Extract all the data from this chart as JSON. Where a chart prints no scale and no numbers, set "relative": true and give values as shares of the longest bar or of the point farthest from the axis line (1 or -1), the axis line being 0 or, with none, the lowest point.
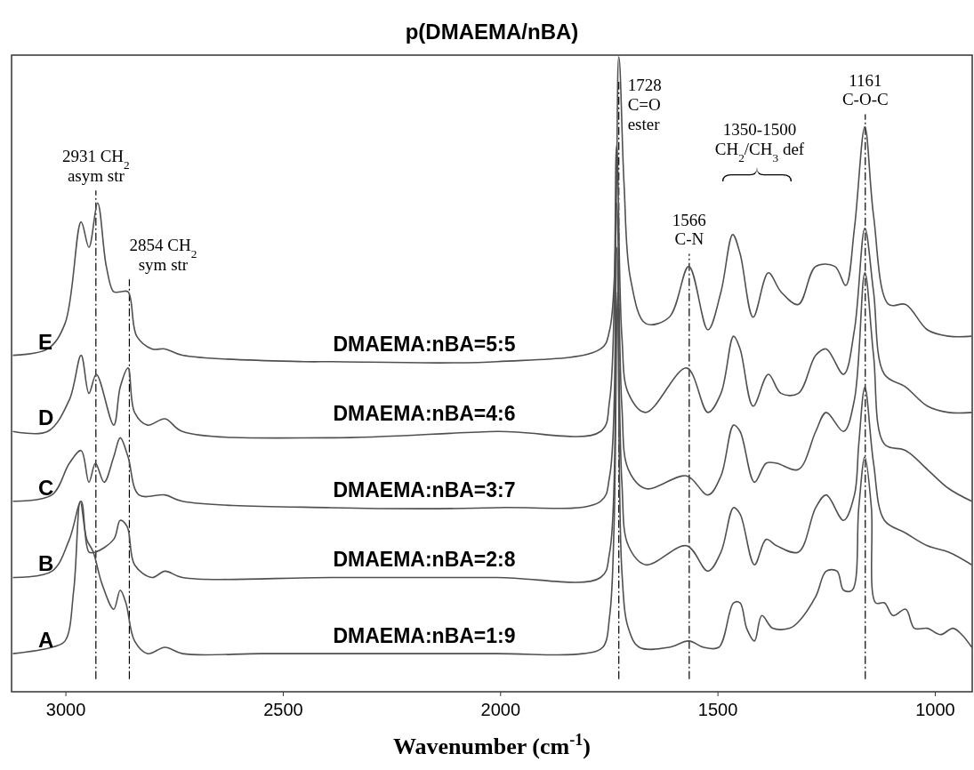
{
  "chart_data": {
    "type": "line",
    "relative": true,
    "title": "p(DMAEMA/nBA)",
    "xlabel": "Wavenumber (cm$^{-1}$)",
    "xlim": [
      3125,
      915
    ],
    "xticks": [
      3000,
      2500,
      2000,
      1500,
      1000
    ],
    "grid": false,
    "legend": false,
    "marker": "none",
    "line_style": "solid",
    "series": [
      {
        "name": "E",
        "color": "#505050",
        "x": [
          3122,
          3042,
          3002,
          2965,
          2947,
          2927,
          2907,
          2890,
          2875,
          2857,
          2837,
          2802,
          2772,
          2732,
          2452,
          2389,
          2008,
          1770,
          1749,
          1728,
          1716,
          1701,
          1666,
          1612,
          1567,
          1523,
          1493,
          1466,
          1449,
          1419,
          1384,
          1355,
          1315,
          1275,
          1231,
          1206,
          1186,
          1162,
          1142,
          1107,
          1068,
          1018,
          969,
          916
        ],
        "values": [
          0.53,
          0.54,
          0.58,
          0.74,
          0.7,
          0.77,
          0.67,
          0.63,
          0.63,
          0.63,
          0.56,
          0.54,
          0.54,
          0.53,
          0.52,
          0.52,
          0.52,
          0.54,
          0.57,
          1.0,
          0.8,
          0.65,
          0.58,
          0.59,
          0.67,
          0.57,
          0.63,
          0.72,
          0.69,
          0.59,
          0.66,
          0.63,
          0.61,
          0.67,
          0.67,
          0.64,
          0.73,
          0.89,
          0.75,
          0.61,
          0.61,
          0.57,
          0.56,
          0.56
        ]
      },
      {
        "name": "D",
        "color": "#505050",
        "x": [
          3122,
          3042,
          2992,
          2965,
          2947,
          2930,
          2890,
          2875,
          2857,
          2842,
          2812,
          2772,
          2732,
          2389,
          2008,
          1770,
          1749,
          1733,
          1721,
          1706,
          1666,
          1572,
          1523,
          1493,
          1464,
          1449,
          1419,
          1384,
          1355,
          1315,
          1275,
          1251,
          1211,
          1186,
          1162,
          1142,
          1117,
          1068,
          1018,
          969,
          916
        ],
        "values": [
          0.41,
          0.41,
          0.46,
          0.53,
          0.47,
          0.5,
          0.42,
          0.48,
          0.51,
          0.44,
          0.42,
          0.43,
          0.41,
          0.4,
          0.41,
          0.41,
          0.46,
          0.86,
          0.56,
          0.47,
          0.44,
          0.51,
          0.44,
          0.47,
          0.56,
          0.54,
          0.45,
          0.5,
          0.47,
          0.47,
          0.53,
          0.54,
          0.5,
          0.57,
          0.73,
          0.63,
          0.5,
          0.48,
          0.45,
          0.44,
          0.44
        ]
      },
      {
        "name": "C",
        "color": "#505050",
        "x": [
          3122,
          3032,
          2992,
          2965,
          2947,
          2932,
          2912,
          2890,
          2875,
          2857,
          2832,
          2772,
          2732,
          2389,
          2008,
          1770,
          1749,
          1733,
          1721,
          1706,
          1666,
          1572,
          1523,
          1493,
          1464,
          1449,
          1416,
          1389,
          1365,
          1315,
          1275,
          1251,
          1211,
          1186,
          1162,
          1142,
          1117,
          1068,
          1018,
          969,
          916
        ],
        "values": [
          0.3,
          0.31,
          0.36,
          0.38,
          0.33,
          0.36,
          0.33,
          0.37,
          0.4,
          0.37,
          0.31,
          0.31,
          0.3,
          0.29,
          0.29,
          0.3,
          0.34,
          0.77,
          0.45,
          0.35,
          0.32,
          0.34,
          0.31,
          0.34,
          0.42,
          0.41,
          0.33,
          0.36,
          0.36,
          0.35,
          0.41,
          0.44,
          0.41,
          0.46,
          0.66,
          0.53,
          0.39,
          0.38,
          0.35,
          0.32,
          0.3
        ]
      },
      {
        "name": "B",
        "color": "#505050",
        "x": [
          3122,
          3032,
          2992,
          2965,
          2947,
          2932,
          2890,
          2875,
          2859,
          2842,
          2802,
          2772,
          2732,
          2389,
          2008,
          1770,
          1749,
          1733,
          1721,
          1706,
          1666,
          1572,
          1523,
          1493,
          1464,
          1449,
          1416,
          1389,
          1365,
          1315,
          1275,
          1251,
          1211,
          1186,
          1176,
          1162,
          1142,
          1117,
          1068,
          1018,
          969,
          916
        ],
        "values": [
          0.18,
          0.19,
          0.24,
          0.3,
          0.22,
          0.22,
          0.24,
          0.27,
          0.26,
          0.2,
          0.18,
          0.19,
          0.18,
          0.18,
          0.18,
          0.18,
          0.22,
          0.7,
          0.33,
          0.23,
          0.2,
          0.23,
          0.19,
          0.22,
          0.29,
          0.28,
          0.2,
          0.24,
          0.23,
          0.22,
          0.29,
          0.31,
          0.27,
          0.31,
          0.39,
          0.48,
          0.36,
          0.27,
          0.25,
          0.23,
          0.22,
          0.2
        ]
      },
      {
        "name": "A",
        "color": "#505050",
        "x": [
          3122,
          3032,
          3002,
          2982,
          2967,
          2952,
          2937,
          2917,
          2890,
          2875,
          2862,
          2842,
          2812,
          2772,
          2732,
          2552,
          2389,
          2008,
          1810,
          1765,
          1749,
          1739,
          1731,
          1721,
          1706,
          1681,
          1612,
          1567,
          1533,
          1498,
          1464,
          1449,
          1434,
          1416,
          1399,
          1374,
          1335,
          1315,
          1275,
          1251,
          1226,
          1211,
          1191,
          1176,
          1162,
          1147,
          1137,
          1117,
          1097,
          1068,
          1048,
          1018,
          988,
          959,
          939,
          916
        ],
        "values": [
          0.06,
          0.07,
          0.08,
          0.16,
          0.3,
          0.24,
          0.22,
          0.17,
          0.13,
          0.16,
          0.14,
          0.08,
          0.06,
          0.07,
          0.06,
          0.06,
          0.06,
          0.06,
          0.06,
          0.07,
          0.12,
          0.26,
          0.63,
          0.19,
          0.1,
          0.07,
          0.07,
          0.08,
          0.07,
          0.07,
          0.14,
          0.14,
          0.1,
          0.08,
          0.12,
          0.1,
          0.1,
          0.11,
          0.15,
          0.19,
          0.19,
          0.16,
          0.16,
          0.29,
          0.37,
          0.29,
          0.14,
          0.14,
          0.12,
          0.13,
          0.1,
          0.1,
          0.09,
          0.1,
          0.09,
          0.07
        ]
      }
    ],
    "annotations": [
      "DMAEMA:nBA=5:5",
      "DMAEMA:nBA=4:6",
      "DMAEMA:nBA=3:7",
      "DMAEMA:nBA=2:8",
      "DMAEMA:nBA=1:9",
      "1350-1500\nCH$_{2}$/CH$_{3}$ def"
    ],
    "ref_lines": [
      {
        "axis": "x",
        "value": 2931,
        "label": "2931 CH$_{2}$\nasym str",
        "line_style": "dashed",
        "color": "#000000"
      },
      {
        "axis": "x",
        "value": 2854,
        "label": "2854 CH$_{2}$\nsym str",
        "line_style": "dashed",
        "color": "#000000"
      },
      {
        "axis": "x",
        "value": 1728,
        "label": "1728\nC=O\nester",
        "line_style": "dashed",
        "color": "#000000"
      },
      {
        "axis": "x",
        "value": 1566,
        "label": "1566\nC-N",
        "line_style": "dashed",
        "color": "#000000"
      },
      {
        "axis": "x",
        "value": 1161,
        "label": "1161\nC-O-C",
        "line_style": "dashed",
        "color": "#000000"
      }
    ]
  }
}
